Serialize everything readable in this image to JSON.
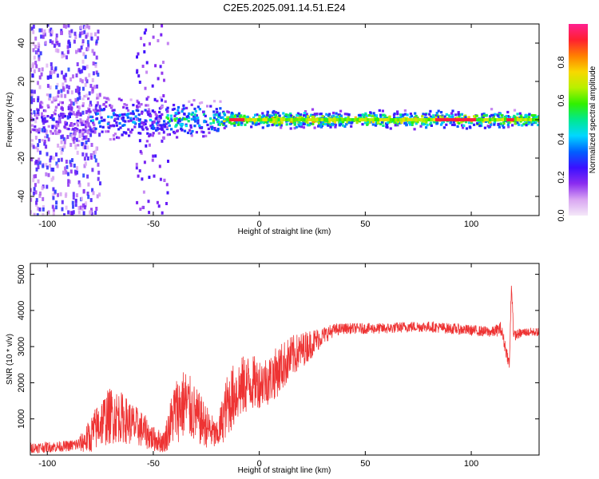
{
  "chart_data": [
    {
      "type": "heatmap",
      "title": "C2E5.2025.091.14.51.E24",
      "xlabel": "Height of straight line (km)",
      "ylabel": "Frequency (Hz)",
      "xlim": [
        -108,
        132
      ],
      "ylim": [
        -50,
        50
      ],
      "xticks": [
        -100,
        -50,
        0,
        50,
        100
      ],
      "yticks": [
        -40,
        -20,
        0,
        20,
        40
      ],
      "colorbar": {
        "label": "Normalized spectral amplitude",
        "range": [
          0,
          1
        ],
        "ticks": [
          "0.0",
          "0.2",
          "0.4",
          "0.6",
          "0.8"
        ],
        "colors": [
          "#f4e8f8",
          "#d9a6f2",
          "#8b2cf0",
          "#3b10ff",
          "#0060ff",
          "#00d8ff",
          "#00e890",
          "#30f000",
          "#b8f000",
          "#f8d800",
          "#ff8000",
          "#ff2030",
          "#ff2090"
        ]
      },
      "segments": [
        {
          "x": [
            -108,
            -80
          ],
          "band_halfwidth_hz": 10,
          "max_amplitude": 0.3,
          "note_scatter": true
        },
        {
          "x": [
            -80,
            -45
          ],
          "band_halfwidth_hz": 8,
          "max_amplitude": 0.45
        },
        {
          "x": [
            -45,
            -18
          ],
          "band_halfwidth_hz": 6,
          "max_amplitude": 0.65
        },
        {
          "x": [
            -18,
            132
          ],
          "band_halfwidth_hz": 3,
          "max_amplitude": 0.95
        }
      ]
    },
    {
      "type": "line",
      "xlabel": "Height of straight line (km)",
      "ylabel": "SNR (10 * v/v)",
      "xlim": [
        -108,
        132
      ],
      "ylim": [
        0,
        5300
      ],
      "xticks": [
        -100,
        -50,
        0,
        50,
        100
      ],
      "yticks": [
        1000,
        2000,
        3000,
        4000,
        5000
      ],
      "color": "#ee3333",
      "x": [
        -108,
        -100,
        -90,
        -85,
        -80,
        -75,
        -70,
        -65,
        -60,
        -55,
        -50,
        -45,
        -40,
        -35,
        -30,
        -25,
        -20,
        -15,
        -10,
        -5,
        0,
        5,
        10,
        15,
        20,
        25,
        30,
        35,
        40,
        50,
        60,
        70,
        80,
        90,
        100,
        110,
        114,
        116,
        118,
        119,
        120,
        125,
        132
      ],
      "y": [
        200,
        220,
        250,
        300,
        500,
        900,
        1100,
        1050,
        850,
        700,
        450,
        350,
        1200,
        1450,
        1100,
        800,
        500,
        1400,
        1800,
        2000,
        2000,
        2100,
        2400,
        2700,
        2900,
        3100,
        3300,
        3450,
        3500,
        3500,
        3500,
        3550,
        3550,
        3500,
        3450,
        3400,
        3500,
        3000,
        2500,
        4800,
        3300,
        3400,
        3400
      ],
      "y_jitter": [
        150,
        150,
        150,
        200,
        500,
        700,
        800,
        700,
        600,
        500,
        350,
        300,
        900,
        1000,
        800,
        600,
        400,
        900,
        900,
        800,
        700,
        700,
        700,
        600,
        500,
        400,
        250,
        180,
        150,
        150,
        150,
        150,
        150,
        150,
        150,
        150,
        200,
        200,
        150,
        300,
        150,
        120,
        120
      ]
    }
  ]
}
